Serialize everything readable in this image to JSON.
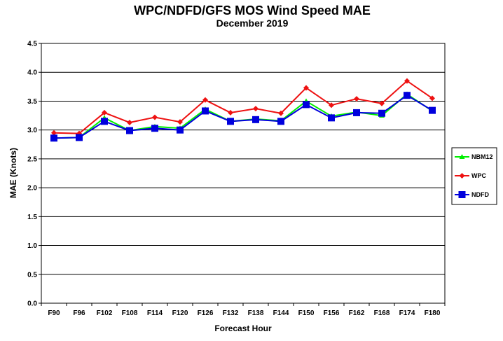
{
  "chart_data": {
    "type": "line",
    "title": "WPC/NDFD/GFS  MOS Wind Speed MAE",
    "subtitle": "December 2019",
    "xlabel": "Forecast Hour",
    "ylabel": "MAE (Knots)",
    "ylim": [
      0,
      4.5
    ],
    "yticks": [
      0.0,
      0.5,
      1.0,
      1.5,
      2.0,
      2.5,
      3.0,
      3.5,
      4.0,
      4.5
    ],
    "ytick_labels": [
      "0.0",
      "0.5",
      "1.0",
      "1.5",
      "2.0",
      "2.5",
      "3.0",
      "3.5",
      "4.0",
      "4.5"
    ],
    "grid": "horizontal",
    "legend_position": "right",
    "categories": [
      "F90",
      "F96",
      "F102",
      "F108",
      "F114",
      "F120",
      "F126",
      "F132",
      "F138",
      "F144",
      "F150",
      "F156",
      "F162",
      "F168",
      "F174",
      "F180"
    ],
    "series": [
      {
        "name": "NBM12",
        "color": "#00ee00",
        "marker": "triangle",
        "values": [
          2.86,
          2.87,
          3.21,
          2.99,
          3.06,
          3.03,
          3.36,
          3.15,
          3.19,
          3.16,
          3.5,
          3.24,
          3.31,
          3.25,
          3.62,
          3.33
        ]
      },
      {
        "name": "WPC",
        "color": "#ee1111",
        "marker": "diamond",
        "values": [
          2.95,
          2.94,
          3.3,
          3.13,
          3.22,
          3.14,
          3.52,
          3.3,
          3.37,
          3.29,
          3.73,
          3.43,
          3.54,
          3.46,
          3.85,
          3.55
        ]
      },
      {
        "name": "NDFD",
        "color": "#0000dd",
        "marker": "square",
        "values": [
          2.86,
          2.87,
          3.15,
          2.99,
          3.03,
          3.0,
          3.33,
          3.15,
          3.18,
          3.15,
          3.44,
          3.21,
          3.3,
          3.29,
          3.6,
          3.34
        ]
      }
    ]
  }
}
